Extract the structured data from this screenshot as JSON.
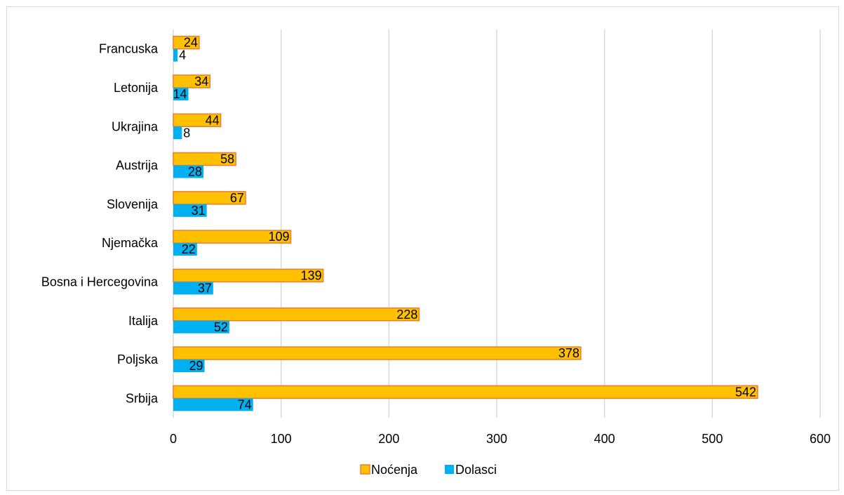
{
  "chart_data": {
    "type": "bar",
    "orientation": "horizontal",
    "categories": [
      "Francuska",
      "Letonija",
      "Ukrajina",
      "Austrija",
      "Slovenija",
      "Njemačka",
      "Bosna i Hercegovina",
      "Italija",
      "Poljska",
      "Srbija"
    ],
    "series": [
      {
        "name": "Noćenja",
        "values": [
          24,
          34,
          44,
          58,
          67,
          109,
          139,
          228,
          378,
          542
        ]
      },
      {
        "name": "Dolasci",
        "values": [
          4,
          14,
          8,
          28,
          31,
          22,
          37,
          52,
          29,
          74
        ]
      }
    ],
    "xlim": [
      0,
      600
    ],
    "xticks": [
      "0",
      "100",
      "200",
      "300",
      "400",
      "500",
      "600"
    ],
    "grid": "vertical",
    "legend": "bottom",
    "title": "",
    "xlabel": "",
    "ylabel": "",
    "colors": {
      "Noćenja": "#ffc000",
      "Noćenja_border": "#ed7d31",
      "Dolasci": "#00b0f0",
      "grid": "#d9d9d9",
      "frame": "#d9d9d9"
    }
  }
}
